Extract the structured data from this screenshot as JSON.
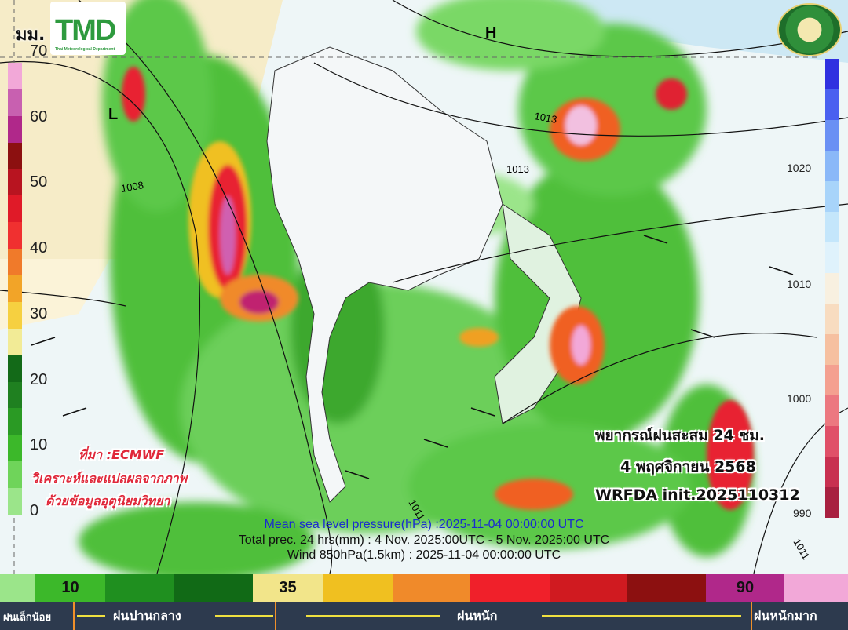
{
  "header": {
    "unit_label": "มม.",
    "logo_left": "TMD",
    "logo_left_subtitle": "Thai Meteorological Department",
    "logo_right": "กรมอุตุนิยมวิทยา METEOROLOGICAL DEPARTMENT"
  },
  "precip_colorbar": {
    "labels": [
      "70",
      "60",
      "50",
      "40",
      "30",
      "20",
      "10",
      "0"
    ],
    "colors": [
      "#9be58a",
      "#6fd45a",
      "#3cb82a",
      "#2a9a24",
      "#1f8020",
      "#136a18",
      "#f2eb96",
      "#f6d040",
      "#f2a428",
      "#f07a2a",
      "#f03030",
      "#e01a28",
      "#b81420",
      "#8c1010",
      "#b0288a",
      "#c860b0",
      "#f2a8d8"
    ]
  },
  "pressure_colorbar": {
    "labels": [
      "1020",
      "1010",
      "1000",
      "990"
    ]
  },
  "map": {
    "pressure_centers": [
      "L",
      "H"
    ],
    "isobar_labels": [
      "1013",
      "1013",
      "1008",
      "1011",
      "1011"
    ]
  },
  "caption": {
    "line1": "พยากรณ์ฝนสะสม 24 ชม.",
    "line2": "4 พฤศจิกายน 2568",
    "line3": "WRFDA  init.2025110312"
  },
  "source": {
    "line1": "ที่มา :ECMWF",
    "line2": "วิเคราะห์และแปลผลจากภาพ",
    "line3": "ด้วยข้อมูลอุตุนิยมวิทยา"
  },
  "info": {
    "mslp": "Mean sea level pressure(hPa) :2025-11-04 00:00:00 UTC",
    "precip": "Total prec. 24 hrs(mm) : 4 Nov. 2025:00UTC - 5 Nov. 2025:00  UTC",
    "wind": "Wind 850hPa(1.5km) : 2025-11-04 00:00:00 UTC"
  },
  "legend": {
    "segments": [
      {
        "color": "#9be58a",
        "label": ""
      },
      {
        "color": "#3cb82a",
        "label": "10"
      },
      {
        "color": "#1f8f1f",
        "label": ""
      },
      {
        "color": "#116a16",
        "label": ""
      },
      {
        "color": "#f2e58a",
        "label": "35"
      },
      {
        "color": "#f0c020",
        "label": ""
      },
      {
        "color": "#f08a2a",
        "label": ""
      },
      {
        "color": "#f0202a",
        "label": ""
      },
      {
        "color": "#d01a20",
        "label": ""
      },
      {
        "color": "#8c1010",
        "label": ""
      },
      {
        "color": "#b0288a",
        "label": "90"
      },
      {
        "color": "#f2a8d8",
        "label": ""
      }
    ],
    "categories": [
      "ฝนเล็กน้อย",
      "ฝนปานกลาง",
      "ฝนหนัก",
      "ฝนหนักมาก"
    ]
  }
}
